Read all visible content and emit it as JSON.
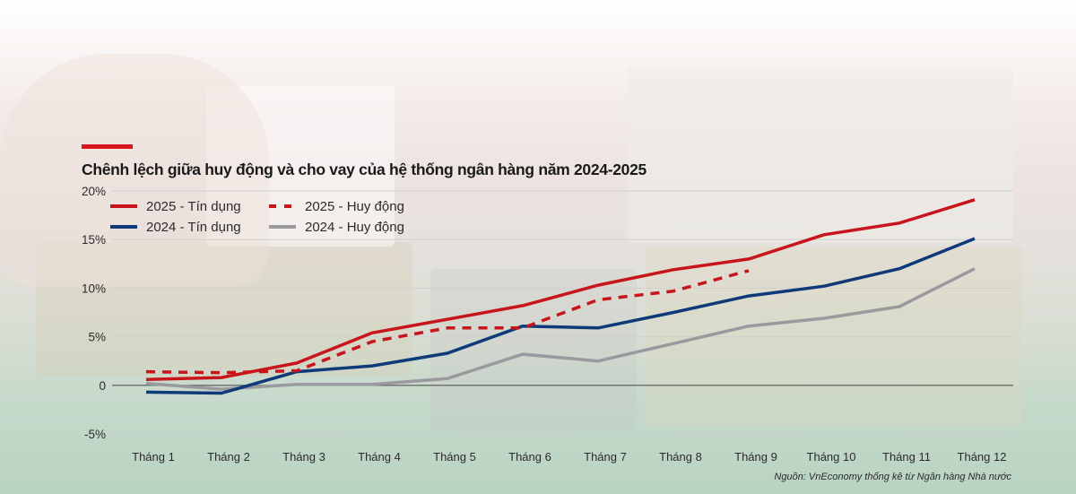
{
  "header": {
    "accent_color": "#d9141b",
    "title": "Chênh lệch giữa huy động và cho vay của hệ thống ngân hàng năm 2024-2025"
  },
  "source_note": "Nguồn: VnEconomy thống kê từ Ngân hàng Nhà nước",
  "colors": {
    "red": "#c8141b",
    "blue": "#0f3a7a",
    "grey": "#9a9a9e",
    "zero_line": "#555555",
    "grid": "#cfcfcf"
  },
  "chart_data": {
    "type": "line",
    "title": "Chênh lệch giữa huy động và cho vay của hệ thống ngân hàng năm 2024-2025",
    "xlabel": "",
    "ylabel": "",
    "categories": [
      "Tháng 1",
      "Tháng 2",
      "Tháng 3",
      "Tháng 4",
      "Tháng 5",
      "Tháng 6",
      "Tháng 7",
      "Tháng 8",
      "Tháng 9",
      "Tháng 10",
      "Tháng 11",
      "Tháng 12"
    ],
    "y_ticks": [
      "20%",
      "15%",
      "10%",
      "5%",
      "0",
      "-5%"
    ],
    "ylim": [
      -5,
      20
    ],
    "grid": true,
    "legend_position": "top-left inside plot",
    "series": [
      {
        "name": "2025 - Tín dụng",
        "style": "solid",
        "color": "#c8141b",
        "values": [
          0.6,
          0.8,
          2.3,
          5.4,
          6.8,
          8.2,
          10.3,
          11.9,
          13.0,
          15.5,
          16.7,
          19.1
        ]
      },
      {
        "name": "2025 - Huy động",
        "style": "dashed",
        "color": "#c8141b",
        "values": [
          1.4,
          1.3,
          1.5,
          4.5,
          5.9,
          5.9,
          8.8,
          9.7,
          11.8,
          null,
          null,
          null
        ]
      },
      {
        "name": "2024 - Tín dụng",
        "style": "solid",
        "color": "#0f3a7a",
        "values": [
          -0.7,
          -0.8,
          1.4,
          2.0,
          3.3,
          6.1,
          5.9,
          7.5,
          9.2,
          10.2,
          12.0,
          15.1
        ]
      },
      {
        "name": "2024 - Huy động",
        "style": "solid",
        "color": "#9a9a9e",
        "values": [
          0.2,
          -0.4,
          0.1,
          0.1,
          0.7,
          3.2,
          2.5,
          4.3,
          6.1,
          6.9,
          8.1,
          12.0
        ]
      }
    ]
  }
}
